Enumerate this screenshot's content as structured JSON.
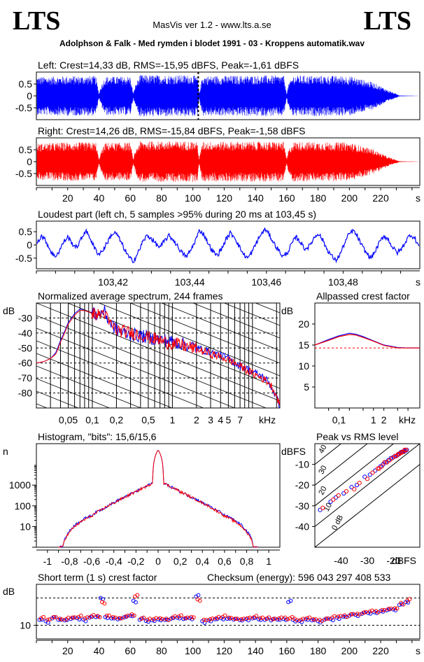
{
  "header": {
    "logo_left": "LTS",
    "logo_right": "LTS",
    "app_title": "MasVis ver 1.2 - www.lts.a.se",
    "track_title": "Adolphson & Falk - Med rymden i blodet 1991 - 03 - Kroppens automatik.wav"
  },
  "colors": {
    "left": "#0000ff",
    "right": "#ff0000",
    "grid": "#000000",
    "background": "#ffffff"
  },
  "chart_data": [
    {
      "id": "left-waveform",
      "type": "area",
      "title": "Left: Crest=14,33 dB, RMS=-15,95 dBFS, Peak=-1,61 dBFS",
      "yticks": [
        "0.5",
        "0",
        "-0.5"
      ],
      "ylim": [
        -1,
        1
      ],
      "xlim": [
        0,
        245
      ],
      "marker_x": 103.45,
      "envelope": {
        "x": [
          0,
          5,
          20,
          38,
          40,
          41,
          44,
          60,
          62,
          63,
          66,
          100,
          103,
          104,
          106,
          140,
          158,
          160,
          161,
          164,
          200,
          215,
          225,
          232,
          245
        ],
        "peak": [
          0.85,
          0.85,
          0.88,
          0.88,
          0.1,
          0.4,
          0.86,
          0.86,
          0.1,
          0.45,
          0.92,
          0.92,
          0.85,
          0.1,
          0.88,
          0.9,
          0.9,
          0.1,
          0.5,
          0.9,
          0.88,
          0.6,
          0.25,
          0.02,
          0.0
        ]
      }
    },
    {
      "id": "right-waveform",
      "type": "area",
      "title": "Right: Crest=14,26 dB, RMS=-15,84 dBFS, Peak=-1,58 dBFS",
      "yticks": [
        "0.5",
        "0",
        "-0.5"
      ],
      "ylim": [
        -1,
        1
      ],
      "xlim": [
        0,
        245
      ],
      "xticks": [
        "20",
        "40",
        "60",
        "80",
        "100",
        "120",
        "140",
        "160",
        "180",
        "200",
        "220"
      ],
      "xunit": "s",
      "envelope": {
        "x": [
          0,
          5,
          20,
          38,
          40,
          41,
          44,
          60,
          62,
          63,
          66,
          100,
          103,
          104,
          106,
          140,
          158,
          160,
          161,
          164,
          200,
          215,
          225,
          232,
          245
        ],
        "peak": [
          0.8,
          0.82,
          0.85,
          0.85,
          0.1,
          0.4,
          0.84,
          0.84,
          0.1,
          0.45,
          0.9,
          0.9,
          0.85,
          0.1,
          0.88,
          0.88,
          0.88,
          0.1,
          0.5,
          0.88,
          0.85,
          0.55,
          0.2,
          0.02,
          0.0
        ]
      }
    },
    {
      "id": "loudest-part",
      "type": "line",
      "title": "Loudest part (left  ch, 5 samples >95% during 20 ms at 103,45 s)",
      "yticks": [
        "0.5",
        "0",
        "-0.5"
      ],
      "ylim": [
        -0.9,
        0.9
      ],
      "xlim": [
        103.4,
        103.5
      ],
      "xticks": [
        "103,42",
        "103,44",
        "103,46",
        "103,48"
      ],
      "xunit": "s",
      "series": [
        {
          "values": [
            0.1,
            0.35,
            0.15,
            -0.2,
            -0.45,
            -0.25,
            0.1,
            0.3,
            0.05,
            -0.1,
            0.2,
            0.55,
            0.3,
            -0.1,
            -0.35,
            -0.2,
            0.1,
            0.4,
            0.45,
            0.15,
            -0.2,
            -0.5,
            -0.6,
            -0.3,
            0.1,
            0.35,
            0.25,
            0.05,
            -0.1,
            0.15,
            0.35,
            0.2,
            -0.05,
            -0.3,
            -0.45,
            -0.2,
            0.15,
            0.55,
            0.4,
            0.05,
            -0.25,
            -0.4,
            -0.15,
            0.2,
            0.45,
            0.3,
            -0.05,
            -0.35,
            -0.5,
            -0.25,
            0.1,
            0.4,
            0.6,
            0.35,
            0.05,
            -0.2,
            -0.45,
            -0.3,
            0.05,
            0.3,
            0.1,
            -0.15,
            -0.05,
            0.25,
            0.45,
            0.2,
            -0.15,
            -0.4,
            -0.6,
            -0.35,
            0.05,
            0.4,
            0.55,
            0.3,
            -0.05,
            -0.3,
            -0.5,
            -0.25,
            0.1,
            0.35,
            0.2,
            -0.1,
            -0.3,
            -0.15,
            0.15,
            0.4,
            0.25,
            -0.05
          ]
        }
      ]
    },
    {
      "id": "spectrum",
      "type": "line",
      "title": "Normalized average spectrum, 244 frames",
      "ylabel": "dB",
      "yticks": [
        -30,
        -40,
        -50,
        -60,
        -70,
        -80
      ],
      "ylim": [
        -90,
        -20
      ],
      "xticks": [
        "0,05",
        "0,1",
        "0,2",
        "0,5",
        "1",
        "2",
        "3",
        "4",
        "5",
        "7"
      ],
      "xtick_values": [
        0.05,
        0.1,
        0.2,
        0.5,
        1,
        2,
        3,
        4,
        5,
        7
      ],
      "xunit": "kHz",
      "xlim": [
        0.02,
        22
      ],
      "series": [
        {
          "values_x": [
            0.02,
            0.025,
            0.03,
            0.035,
            0.04,
            0.05,
            0.06,
            0.07,
            0.08,
            0.1,
            0.12,
            0.14,
            0.16,
            0.2,
            0.25,
            0.3,
            0.4,
            0.5,
            0.6,
            0.8,
            1,
            1.5,
            2,
            3,
            4,
            5,
            6,
            7,
            8,
            10,
            12,
            14,
            16,
            18,
            20,
            22
          ],
          "values": [
            -60,
            -59,
            -57,
            -53,
            -45,
            -33,
            -27,
            -24,
            -25,
            -27,
            -28,
            -25,
            -32,
            -38,
            -40,
            -41,
            -42,
            -43,
            -44,
            -45,
            -46,
            -48,
            -50,
            -53,
            -55,
            -57,
            -60,
            -62,
            -63,
            -66,
            -68,
            -70,
            -73,
            -78,
            -83,
            -90
          ]
        },
        {
          "values_x": [
            0.02,
            0.025,
            0.03,
            0.035,
            0.04,
            0.05,
            0.06,
            0.07,
            0.08,
            0.1,
            0.12,
            0.14,
            0.16,
            0.2,
            0.25,
            0.3,
            0.4,
            0.5,
            0.6,
            0.8,
            1,
            1.5,
            2,
            3,
            4,
            5,
            6,
            7,
            8,
            10,
            12,
            14,
            16,
            18,
            20,
            22
          ],
          "values": [
            -60,
            -59,
            -57,
            -54,
            -46,
            -34,
            -28,
            -25,
            -25,
            -27,
            -28,
            -26,
            -33,
            -38,
            -39,
            -40,
            -41,
            -43,
            -44,
            -46,
            -47,
            -49,
            -51,
            -54,
            -56,
            -58,
            -60,
            -62,
            -64,
            -67,
            -69,
            -71,
            -73,
            -77,
            -82,
            -88
          ]
        }
      ]
    },
    {
      "id": "allpassed-crest",
      "type": "line",
      "title": "Allpassed crest factor",
      "ylabel": "dB",
      "yticks": [
        20,
        15,
        10,
        5
      ],
      "ylim": [
        0,
        25
      ],
      "xticks": [
        "0,1",
        "1",
        "2"
      ],
      "xtick_values": [
        0.1,
        1,
        2
      ],
      "xunit": "kHz",
      "xlim": [
        0.02,
        22
      ],
      "reference_line": 14.3,
      "series": [
        {
          "values_x": [
            0.02,
            0.05,
            0.1,
            0.2,
            0.3,
            0.5,
            1,
            2,
            5,
            10,
            22
          ],
          "values": [
            15,
            16.3,
            17.2,
            17.8,
            17.6,
            17.0,
            16.0,
            15.0,
            14.4,
            14.3,
            14.3
          ]
        },
        {
          "values_x": [
            0.02,
            0.05,
            0.1,
            0.2,
            0.3,
            0.5,
            1,
            2,
            5,
            10,
            22
          ],
          "values": [
            15,
            16.1,
            17.0,
            17.5,
            17.4,
            16.8,
            15.9,
            14.9,
            14.3,
            14.3,
            14.3
          ]
        }
      ]
    },
    {
      "id": "histogram",
      "type": "line",
      "title": "Histogram, \"bits\": 15,6/15,6",
      "ylabel": "n",
      "yticks": [
        "1000",
        "100",
        "10"
      ],
      "ylog": true,
      "ylim": [
        1,
        100000
      ],
      "xticks": [
        "-1",
        "-0,8",
        "-0,6",
        "-0,4",
        "-0,2",
        "0",
        "0,2",
        "0,4",
        "0,6",
        "0,8",
        "1"
      ],
      "xtick_values": [
        -1,
        -0.8,
        -0.6,
        -0.4,
        -0.2,
        0,
        0.2,
        0.4,
        0.6,
        0.8,
        1
      ],
      "xlim": [
        -1.1,
        1.1
      ],
      "series": [
        {
          "values_x": [
            -0.86,
            -0.85,
            -0.8,
            -0.7,
            -0.6,
            -0.5,
            -0.4,
            -0.3,
            -0.2,
            -0.1,
            -0.05,
            0,
            0.05,
            0.1,
            0.2,
            0.3,
            0.4,
            0.5,
            0.6,
            0.7,
            0.8,
            0.85,
            0.86
          ],
          "values": [
            1,
            2,
            6,
            18,
            35,
            70,
            140,
            260,
            480,
            900,
            1300,
            50000,
            1300,
            900,
            480,
            260,
            140,
            70,
            35,
            18,
            6,
            2,
            1
          ]
        },
        {
          "values_x": [
            -0.86,
            -0.85,
            -0.8,
            -0.7,
            -0.6,
            -0.5,
            -0.4,
            -0.3,
            -0.2,
            -0.1,
            -0.05,
            0,
            0.05,
            0.1,
            0.2,
            0.3,
            0.4,
            0.5,
            0.6,
            0.7,
            0.8,
            0.85,
            0.86
          ],
          "values": [
            1,
            2,
            5,
            16,
            32,
            68,
            135,
            255,
            470,
            880,
            1280,
            50000,
            1280,
            880,
            470,
            255,
            135,
            68,
            32,
            16,
            5,
            2,
            1
          ]
        }
      ]
    },
    {
      "id": "peak-vs-rms",
      "type": "scatter",
      "title": "Peak vs RMS level",
      "ylabel": "dBFS",
      "xunit": "dBFS",
      "yticks": [
        -10,
        -20,
        -30,
        -40
      ],
      "xticks": [
        "-40",
        "-30",
        "-20"
      ],
      "xtick_values": [
        -40,
        -30,
        -20
      ],
      "xlim": [
        -50,
        -10
      ],
      "ylim": [
        -50,
        0
      ],
      "diagonal_labels": [
        "40",
        "30",
        "20",
        "10",
        "0 dB"
      ],
      "series": [
        {
          "x": [
            -48,
            -44,
            -42,
            -39,
            -36,
            -34,
            -31,
            -29,
            -27,
            -25,
            -24,
            -23,
            -22,
            -21,
            -20,
            -19,
            -18.5,
            -18,
            -17.5,
            -17,
            -16.5,
            -16,
            -15.5,
            -15
          ],
          "y": [
            -32,
            -28,
            -26,
            -24,
            -21,
            -20,
            -16,
            -15,
            -13,
            -11,
            -10,
            -9,
            -8,
            -7,
            -6.5,
            -6,
            -5.5,
            -5,
            -4.5,
            -4,
            -4,
            -3.5,
            -3.5,
            -3
          ]
        },
        {
          "x": [
            -47,
            -43,
            -41,
            -38,
            -35,
            -33,
            -30,
            -28,
            -26,
            -25.5,
            -24.5,
            -23.5,
            -22.5,
            -21.5,
            -20.5,
            -19.5,
            -19,
            -18.2,
            -17.8,
            -17.2,
            -16.8,
            -16.2,
            -15.8,
            -15.2
          ],
          "y": [
            -31,
            -27,
            -25,
            -23,
            -22,
            -19,
            -17,
            -14,
            -12,
            -12,
            -11,
            -9,
            -9,
            -8,
            -7,
            -6,
            -6,
            -5,
            -5,
            -4.5,
            -4,
            -4,
            -3,
            -3
          ]
        }
      ]
    },
    {
      "id": "short-term-crest",
      "type": "scatter",
      "title": "Short term (1 s) crest factor",
      "checksum": "Checksum (energy):   596 043 297 408 533",
      "ylabel": "dB",
      "yticks": [
        "10"
      ],
      "ylim": [
        5,
        25
      ],
      "xlim": [
        0,
        245
      ],
      "xticks": [
        "20",
        "40",
        "60",
        "80",
        "100",
        "120",
        "140",
        "160",
        "180",
        "200",
        "220"
      ],
      "xunit": "s",
      "reference_lines": [
        10,
        20
      ],
      "series": [
        {
          "x": [
            2,
            6,
            10,
            14,
            18,
            22,
            26,
            30,
            34,
            38,
            41,
            44,
            48,
            52,
            56,
            60,
            62,
            66,
            70,
            74,
            78,
            82,
            86,
            90,
            94,
            98,
            102,
            106,
            110,
            114,
            118,
            122,
            126,
            130,
            134,
            138,
            142,
            146,
            150,
            154,
            158,
            161,
            164,
            168,
            172,
            176,
            180,
            184,
            188,
            192,
            196,
            200,
            204,
            208,
            212,
            216,
            220,
            224,
            228,
            232,
            236
          ],
          "y": [
            12,
            11.5,
            12.5,
            12,
            11.8,
            12.3,
            12.6,
            12.1,
            12.8,
            13,
            20,
            13,
            12.5,
            12.2,
            12.9,
            13.5,
            19,
            12,
            11.6,
            11.8,
            12.2,
            12,
            12.4,
            12.8,
            12.3,
            12.6,
            20.5,
            11.5,
            11.8,
            12.2,
            12.6,
            12.4,
            12.1,
            11.9,
            12.3,
            12.5,
            12.2,
            12,
            11.8,
            12.1,
            12.3,
            18.5,
            12,
            11.6,
            12.2,
            11.8,
            11.5,
            12,
            12.3,
            12.8,
            13.2,
            13.5,
            13.8,
            14.2,
            14.5,
            14.8,
            15.2,
            15.5,
            15.8,
            17.5,
            18.5
          ]
        },
        {
          "x": [
            3,
            7,
            11,
            15,
            19,
            23,
            27,
            31,
            35,
            39,
            42,
            45,
            49,
            53,
            57,
            61,
            63,
            67,
            71,
            75,
            79,
            83,
            87,
            91,
            95,
            99,
            103,
            107,
            111,
            115,
            119,
            123,
            127,
            131,
            135,
            139,
            143,
            147,
            151,
            155,
            159,
            162,
            165,
            169,
            173,
            177,
            181,
            185,
            189,
            193,
            197,
            201,
            205,
            209,
            213,
            217,
            221,
            225,
            229,
            233,
            237
          ],
          "y": [
            12.5,
            12,
            13,
            12.4,
            12.2,
            12.8,
            13,
            12.5,
            13.2,
            13.4,
            18.5,
            13.5,
            13,
            12.6,
            13.2,
            14,
            20.5,
            12.4,
            12,
            12.2,
            12.6,
            12.4,
            12.8,
            13.2,
            12.6,
            13,
            19.5,
            12,
            12.2,
            12.6,
            13,
            12.8,
            12.4,
            12.2,
            12.6,
            12.9,
            12.6,
            12.4,
            12.2,
            12.5,
            12.8,
            12.5,
            12.4,
            12,
            12.6,
            12.2,
            12,
            12.4,
            12.8,
            13.2,
            13.6,
            14,
            14.2,
            14.6,
            15,
            15.2,
            15.6,
            16,
            16.2,
            18.2,
            19
          ]
        }
      ]
    }
  ]
}
